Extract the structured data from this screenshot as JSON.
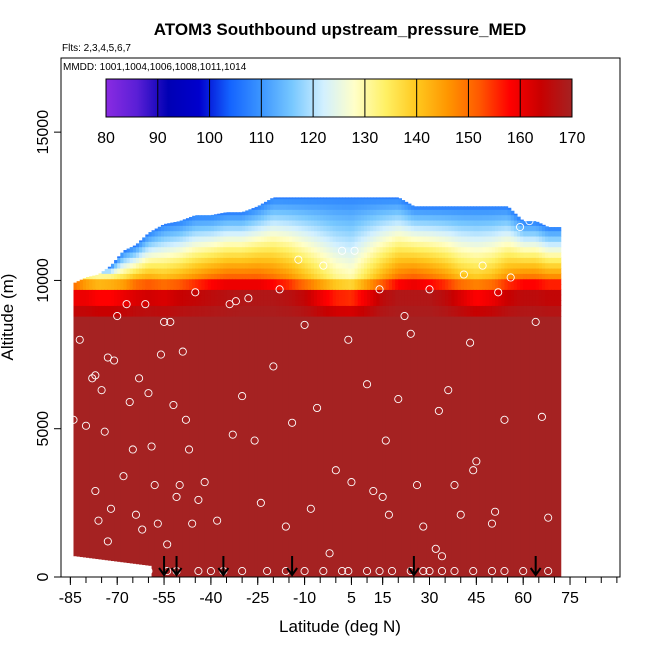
{
  "chart_data": {
    "type": "heatmap",
    "title": "ATOM3 Southbound upstream_pressure_MED",
    "flights_note": "Flts: 2,3,4,5,6,7",
    "dates_note": "MMDD: 1001,1004,1006,1008,1011,1014",
    "xlabel": "Latitude (deg N)",
    "ylabel": "Altitude (m)",
    "xlim": [
      -88,
      91
    ],
    "ylim": [
      0,
      17500
    ],
    "x_ticks": [
      -85,
      -70,
      -55,
      -40,
      -25,
      -10,
      5,
      15,
      30,
      45,
      60,
      75
    ],
    "x_minor_step": 5,
    "y_ticks": [
      0,
      5000,
      10000,
      15000
    ],
    "colorbar": {
      "ticks": [
        80,
        90,
        100,
        110,
        120,
        130,
        140,
        150,
        160,
        170
      ],
      "range": [
        80,
        170
      ],
      "colors": [
        "#8a2be2",
        "#5a1fd6",
        "#0000b4",
        "#0000cd",
        "#1464ff",
        "#3c96ff",
        "#78c8ff",
        "#d2f0ff",
        "#ffffc8",
        "#fff064",
        "#ffc81e",
        "#ff9600",
        "#ff5a00",
        "#ff0000",
        "#c80000",
        "#a52222"
      ]
    },
    "profile": [
      {
        "lat": -84,
        "top": 9900,
        "v9500": 150,
        "v9000": 160
      },
      {
        "lat": -80,
        "top": 10100,
        "v9500": 145,
        "v9000": 160
      },
      {
        "lat": -76,
        "top": 10200,
        "v9500": 142,
        "v9000": 158
      },
      {
        "lat": -72,
        "top": 10500,
        "v9500": 143,
        "v9000": 158
      },
      {
        "lat": -68,
        "top": 11000,
        "v9500": 145,
        "v9000": 160
      },
      {
        "lat": -64,
        "top": 11200,
        "v9500": 150,
        "v9000": 162
      },
      {
        "lat": -60,
        "top": 11600,
        "v9500": 152,
        "v9000": 163
      },
      {
        "lat": -55,
        "top": 11900,
        "v9500": 150,
        "v9000": 162
      },
      {
        "lat": -50,
        "top": 12000,
        "v9500": 152,
        "v9000": 164
      },
      {
        "lat": -45,
        "top": 12200,
        "v9500": 155,
        "v9000": 165
      },
      {
        "lat": -40,
        "top": 12200,
        "v9500": 158,
        "v9000": 166
      },
      {
        "lat": -35,
        "top": 12300,
        "v9500": 160,
        "v9000": 167
      },
      {
        "lat": -30,
        "top": 12300,
        "v9500": 160,
        "v9000": 168
      },
      {
        "lat": -25,
        "top": 12500,
        "v9500": 160,
        "v9000": 168
      },
      {
        "lat": -20,
        "top": 12800,
        "v9500": 158,
        "v9000": 168
      },
      {
        "lat": -15,
        "top": 12800,
        "v9500": 155,
        "v9000": 167
      },
      {
        "lat": -10,
        "top": 12800,
        "v9500": 150,
        "v9000": 165
      },
      {
        "lat": -5,
        "top": 12800,
        "v9500": 145,
        "v9000": 160
      },
      {
        "lat": 0,
        "top": 12800,
        "v9500": 140,
        "v9000": 156
      },
      {
        "lat": 5,
        "top": 12800,
        "v9500": 138,
        "v9000": 155
      },
      {
        "lat": 10,
        "top": 12800,
        "v9500": 145,
        "v9000": 160
      },
      {
        "lat": 15,
        "top": 12800,
        "v9500": 152,
        "v9000": 166
      },
      {
        "lat": 20,
        "top": 12800,
        "v9500": 158,
        "v9000": 168
      },
      {
        "lat": 25,
        "top": 12500,
        "v9500": 160,
        "v9000": 168
      },
      {
        "lat": 30,
        "top": 12500,
        "v9500": 158,
        "v9000": 168
      },
      {
        "lat": 35,
        "top": 12500,
        "v9500": 155,
        "v9000": 166
      },
      {
        "lat": 40,
        "top": 12500,
        "v9500": 150,
        "v9000": 162
      },
      {
        "lat": 45,
        "top": 12500,
        "v9500": 148,
        "v9000": 158
      },
      {
        "lat": 50,
        "top": 12500,
        "v9500": 150,
        "v9000": 160
      },
      {
        "lat": 55,
        "top": 12500,
        "v9500": 155,
        "v9000": 164
      },
      {
        "lat": 60,
        "top": 12000,
        "v9500": 158,
        "v9000": 166
      },
      {
        "lat": 64,
        "top": 12000,
        "v9500": 158,
        "v9000": 166
      },
      {
        "lat": 68,
        "top": 11800,
        "v9500": 156,
        "v9000": 165
      }
    ],
    "data_extent": {
      "lat_min": -84,
      "lat_max": 72,
      "bottom_alt_west": 700,
      "bottom_alt_east": 0
    },
    "sample_points": [
      [
        -84,
        5300
      ],
      [
        -82,
        8000
      ],
      [
        -80,
        5100
      ],
      [
        -78,
        6700
      ],
      [
        -77,
        6800
      ],
      [
        -77,
        2900
      ],
      [
        -76,
        1900
      ],
      [
        -75,
        6300
      ],
      [
        -74,
        4900
      ],
      [
        -73,
        7400
      ],
      [
        -73,
        1200
      ],
      [
        -72,
        2300
      ],
      [
        -71,
        7300
      ],
      [
        -70,
        8800
      ],
      [
        -68,
        3400
      ],
      [
        -67,
        9200
      ],
      [
        -66,
        5900
      ],
      [
        -65,
        4300
      ],
      [
        -64,
        2100
      ],
      [
        -63,
        6700
      ],
      [
        -62,
        1600
      ],
      [
        -61,
        9200
      ],
      [
        -60,
        6200
      ],
      [
        -59,
        4400
      ],
      [
        -58,
        3100
      ],
      [
        -57,
        1800
      ],
      [
        -56,
        7500
      ],
      [
        -55,
        8600
      ],
      [
        -54,
        1100
      ],
      [
        -53,
        8600
      ],
      [
        -52,
        5800
      ],
      [
        -51,
        2700
      ],
      [
        -50,
        3100
      ],
      [
        -49,
        7600
      ],
      [
        -48,
        5300
      ],
      [
        -47,
        4300
      ],
      [
        -46,
        1800
      ],
      [
        -45,
        9600
      ],
      [
        -44,
        2600
      ],
      [
        -42,
        3200
      ],
      [
        -38,
        1900
      ],
      [
        -34,
        9200
      ],
      [
        -33,
        4800
      ],
      [
        -32,
        9300
      ],
      [
        -30,
        6100
      ],
      [
        -28,
        9400
      ],
      [
        -26,
        4600
      ],
      [
        -24,
        2500
      ],
      [
        -20,
        7100
      ],
      [
        -18,
        9700
      ],
      [
        -16,
        1700
      ],
      [
        -14,
        5200
      ],
      [
        -12,
        10700
      ],
      [
        -10,
        8500
      ],
      [
        -8,
        2300
      ],
      [
        -6,
        5700
      ],
      [
        -4,
        10500
      ],
      [
        -2,
        800
      ],
      [
        0,
        3600
      ],
      [
        2,
        11000
      ],
      [
        4,
        8000
      ],
      [
        5,
        3200
      ],
      [
        6,
        11000
      ],
      [
        10,
        6500
      ],
      [
        12,
        2900
      ],
      [
        14,
        9700
      ],
      [
        15,
        2700
      ],
      [
        16,
        4600
      ],
      [
        17,
        2100
      ],
      [
        20,
        6000
      ],
      [
        22,
        8800
      ],
      [
        24,
        8200
      ],
      [
        26,
        3100
      ],
      [
        28,
        1700
      ],
      [
        30,
        9700
      ],
      [
        32,
        950
      ],
      [
        33,
        5600
      ],
      [
        34,
        700
      ],
      [
        36,
        6300
      ],
      [
        38,
        3100
      ],
      [
        40,
        2100
      ],
      [
        41,
        10200
      ],
      [
        43,
        7900
      ],
      [
        44,
        3600
      ],
      [
        45,
        3900
      ],
      [
        47,
        10500
      ],
      [
        50,
        1800
      ],
      [
        51,
        2200
      ],
      [
        52,
        9600
      ],
      [
        54,
        5300
      ],
      [
        56,
        10100
      ],
      [
        59,
        11800
      ],
      [
        62,
        12000
      ],
      [
        64,
        8600
      ],
      [
        66,
        5400
      ],
      [
        68,
        2000
      ]
    ],
    "ground_points": [
      -78,
      -74,
      -72,
      -70,
      -62,
      -60,
      -54,
      -51,
      -44,
      -40,
      -36,
      -30,
      -22,
      -16,
      -10,
      -4,
      2,
      4,
      10,
      14,
      18,
      24,
      28,
      30,
      34,
      38,
      44,
      50,
      54,
      60,
      68
    ],
    "arrow_markers": [
      -55,
      -51,
      -36,
      -14,
      25,
      64
    ]
  }
}
